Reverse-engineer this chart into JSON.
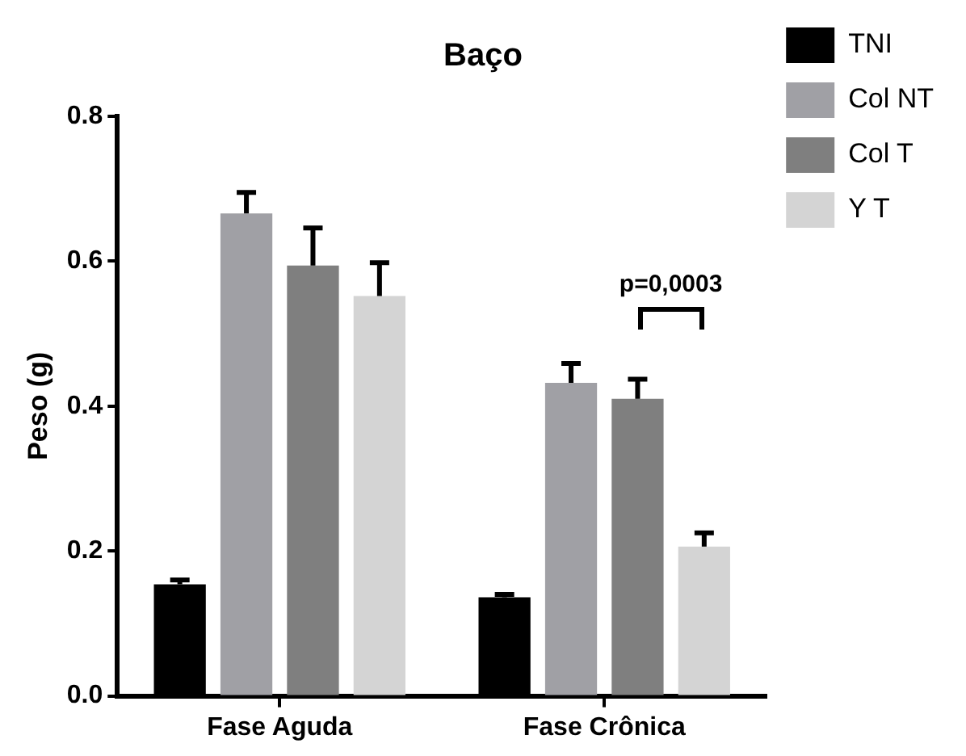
{
  "chart_data": {
    "type": "bar",
    "title": "Baço",
    "ylabel": "Peso (g)",
    "categories": [
      "Fase Aguda",
      "Fase Crônica"
    ],
    "series": [
      {
        "name": "TNI",
        "color": "#000000",
        "values": [
          0.154,
          0.136
        ],
        "errors": [
          [
            0.154,
            0.16
          ],
          [
            0.136,
            0.14
          ]
        ]
      },
      {
        "name": "Col NT",
        "color": "#a0a0a5",
        "values": [
          0.666,
          0.432
        ],
        "errors": [
          [
            0.666,
            0.695
          ],
          [
            0.432,
            0.459
          ]
        ]
      },
      {
        "name": "Col T",
        "color": "#7f7f7f",
        "values": [
          0.594,
          0.41
        ],
        "errors": [
          [
            0.594,
            0.646
          ],
          [
            0.41,
            0.437
          ]
        ]
      },
      {
        "name": "Y T",
        "color": "#d4d4d4",
        "values": [
          0.552,
          0.206
        ],
        "errors": [
          [
            0.552,
            0.598
          ],
          [
            0.206,
            0.225
          ]
        ]
      }
    ],
    "ylim": [
      0,
      0.8
    ],
    "yticks": [
      {
        "value": 0,
        "label": "0.0"
      },
      {
        "value": 0.2,
        "label": "0.2"
      },
      {
        "value": 0.4,
        "label": "0.4"
      },
      {
        "value": 0.6,
        "label": "0.6"
      },
      {
        "value": 0.8,
        "label": "0.8"
      }
    ],
    "annotations": [
      "p=0,0003"
    ],
    "grid": false,
    "legend": "top right"
  }
}
